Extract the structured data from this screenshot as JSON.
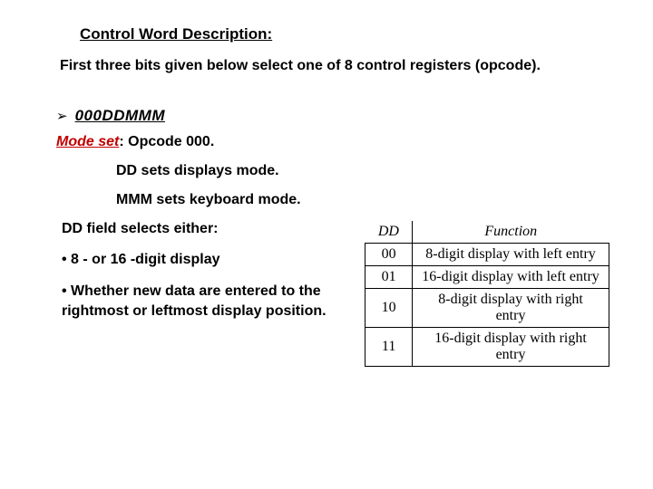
{
  "heading": "Control Word Description:",
  "intro": "First three bits given below select one of 8 control registers (opcode).",
  "bullet_arrow": "➢",
  "code_word": "000DDMMM",
  "mode_label": "Mode set",
  "mode_rest": ": Opcode 000.",
  "dd_line": "DD sets displays mode.",
  "mmm_line": "MMM sets keyboard mode.",
  "dd_title": "DD field selects either:",
  "sub1": "• 8 - or 16 -digit display",
  "sub2": "• Whether new data are entered to the rightmost or leftmost display position.",
  "table": {
    "headers": [
      "DD",
      "Function"
    ],
    "rows": [
      [
        "00",
        "8-digit display with left entry"
      ],
      [
        "01",
        "16-digit display with left entry"
      ],
      [
        "10",
        "8-digit display with right entry"
      ],
      [
        "11",
        "16-digit display with right entry"
      ]
    ],
    "border_color": "#000000",
    "header_font_style": "italic",
    "font_family": "Times New Roman"
  },
  "colors": {
    "text": "#000000",
    "accent_red": "#c00000",
    "background": "#ffffff"
  }
}
